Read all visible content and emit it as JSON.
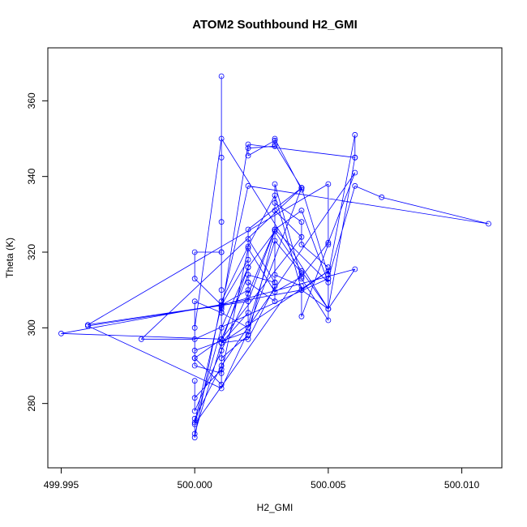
{
  "chart_data": {
    "type": "line",
    "title": "ATOM2 Southbound H2_GMI",
    "xlabel": "H2_GMI",
    "ylabel": "Theta (K)",
    "xlim": [
      499.9945,
      500.0115
    ],
    "ylim": [
      263,
      374
    ],
    "x_ticks": [
      499.995,
      500.0,
      500.005,
      500.01
    ],
    "x_tick_labels": [
      "499.995",
      "500.000",
      "500.005",
      "500.010"
    ],
    "y_ticks": [
      280,
      300,
      320,
      340,
      360
    ],
    "y_tick_labels": [
      "280",
      "300",
      "320",
      "340",
      "360"
    ],
    "grid": false,
    "legend": "none",
    "series": [
      {
        "color": "#0000ff",
        "marker": "open-circle",
        "x": [
          500.001,
          500.001,
          500.001,
          500.001,
          500.001,
          500.001,
          500.001,
          500.002,
          500.002,
          500.002,
          500.004,
          500.004,
          500.003,
          500.003,
          500.002,
          500.002,
          500.003,
          500.003,
          500.004,
          500.005,
          500.006,
          500.006,
          500.005,
          500.001,
          500.0,
          500.0,
          500.001,
          500.001,
          500.002,
          500.003,
          500.003,
          500.004,
          500.004,
          500.005,
          500.005,
          500.006,
          500.007,
          500.011,
          500.002,
          500.001,
          500.001,
          500.0,
          500.0,
          500.001,
          500.002,
          500.002,
          500.003,
          500.003,
          500.004,
          500.004,
          500.005,
          500.005,
          499.996,
          500.001,
          500.002,
          500.002,
          500.003,
          500.003,
          500.004,
          500.001,
          499.995,
          500.004,
          500.005,
          500.006,
          500.002,
          500.001,
          500.0,
          500.0,
          500.001,
          500.002,
          500.003,
          500.003,
          500.004,
          500.005,
          500.005,
          500.0,
          499.998,
          500.004,
          500.002,
          500.001,
          500.001,
          500.0,
          500.0,
          500.0,
          500.001,
          500.002,
          500.003,
          500.004,
          500.005,
          500.003,
          500.002,
          499.996,
          500.001,
          500.002,
          500.0,
          500.0,
          500.001,
          500.002,
          500.003,
          500.004,
          500.005,
          500.006,
          500.001,
          500.0,
          500.0,
          500.001,
          500.002,
          500.002,
          500.003,
          500.004,
          500.0,
          500.001,
          500.002,
          500.003,
          500.004,
          500.005,
          500.006,
          500.001,
          500.0,
          500.0,
          500.001,
          500.002,
          500.003,
          500.004,
          500.005,
          500.001,
          500.002,
          500.003
        ],
        "y": [
          366.5,
          345,
          328,
          320,
          310,
          305,
          296,
          304,
          312,
          326,
          337,
          336.5,
          350,
          348,
          347.5,
          345.5,
          349.5,
          348.5,
          337,
          314,
          351,
          345,
          305,
          350,
          300,
          292,
          285,
          292,
          298,
          326,
          333,
          328,
          322,
          316,
          313,
          337.5,
          334.5,
          327.5,
          337.5,
          305.5,
          320,
          320,
          313,
          306,
          318,
          312,
          307,
          314,
          311,
          303,
          322,
          338,
          300.8,
          306,
          310,
          323.5,
          312,
          331,
          324,
          297,
          298.5,
          310,
          305,
          345,
          348.5,
          304,
          307,
          292,
          297,
          314,
          312,
          338,
          313,
          302,
          313,
          297,
          297,
          337,
          300,
          304,
          289,
          281.5,
          286,
          278,
          294,
          309,
          326,
          331,
          312,
          326,
          307,
          300.5,
          284,
          299,
          294,
          290,
          288,
          321,
          309.5,
          313.5,
          322.5,
          341,
          290,
          276,
          272,
          296,
          316,
          301,
          323,
          314.5,
          274.5,
          300,
          316,
          325.5,
          315,
          305,
          315.5,
          306,
          275,
          271,
          307,
          321.5,
          335,
          310,
          315,
          296,
          297,
          311
        ]
      }
    ]
  }
}
